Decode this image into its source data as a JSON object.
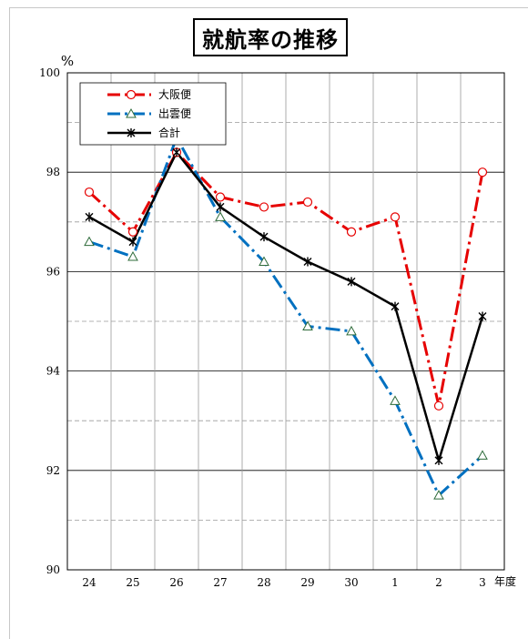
{
  "chart_data": {
    "type": "line",
    "title": "就航率の推移",
    "ylabel": "%",
    "xlabel": "年度",
    "categories": [
      "24",
      "25",
      "26",
      "27",
      "28",
      "29",
      "30",
      "1",
      "2",
      "3"
    ],
    "ylim": [
      90,
      100
    ],
    "yticks": [
      "90",
      "92",
      "94",
      "96",
      "98",
      "100"
    ],
    "grid": true,
    "legend_position": "top-left",
    "series": [
      {
        "name": "大阪便",
        "color": "#e60000",
        "marker": "circle",
        "dash": "long-dash-dot",
        "values": [
          97.6,
          96.8,
          98.4,
          97.5,
          97.3,
          97.4,
          96.8,
          97.1,
          93.3,
          98.0
        ]
      },
      {
        "name": "出雲便",
        "color": "#0070c0",
        "marker": "triangle",
        "dash": "long-dash-dot",
        "values": [
          96.6,
          96.3,
          98.7,
          97.1,
          96.2,
          94.9,
          94.8,
          93.4,
          91.5,
          92.3
        ]
      },
      {
        "name": "合計",
        "color": "#000000",
        "marker": "x",
        "dash": "solid",
        "values": [
          97.1,
          96.6,
          98.4,
          97.3,
          96.7,
          96.2,
          95.8,
          95.3,
          92.2,
          95.1
        ]
      }
    ]
  }
}
